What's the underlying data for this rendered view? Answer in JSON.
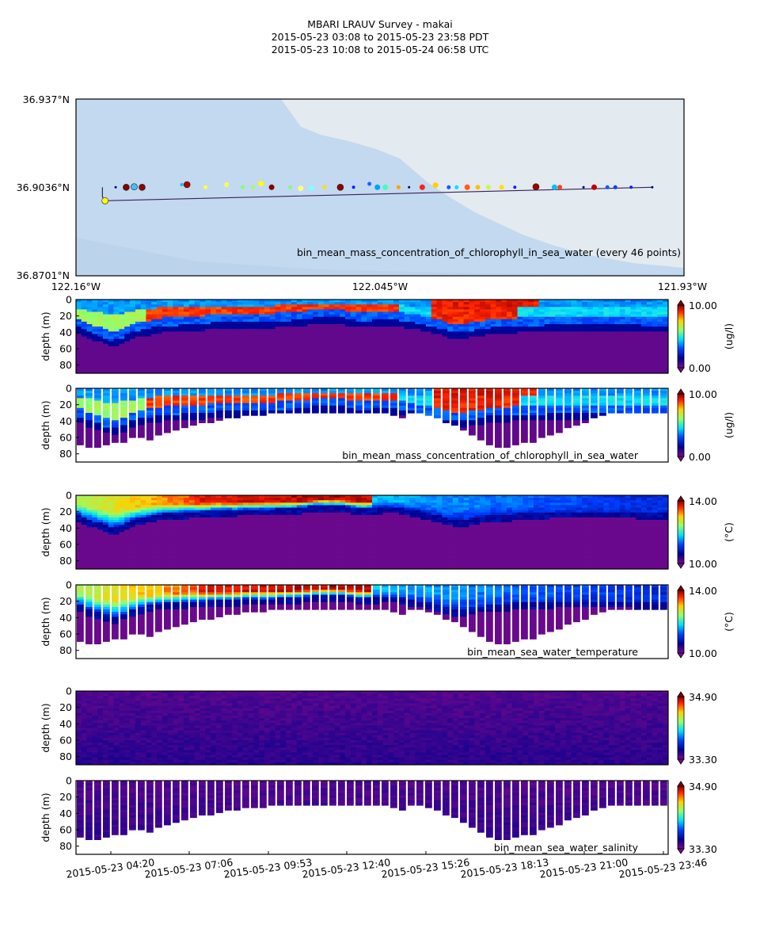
{
  "header": {
    "title": "MBARI LRAUV Survey - makai",
    "pdt_range": "2015-05-23 03:08  to  2015-05-23 23:58 PDT",
    "utc_range": "2015-05-23 10:08  to  2015-05-24 06:58 UTC"
  },
  "colors": {
    "map_land": "#e3eaf0",
    "map_water": "#c2d9ef",
    "track_line": "#3b1f5c"
  },
  "chart_data": [
    {
      "type": "scatter",
      "name": "track-map",
      "title": "",
      "annotation": "bin_mean_mass_concentration_of_chlorophyll_in_sea_water (every 46 points)",
      "xlim": [
        -122.16,
        -121.93
      ],
      "ylim": [
        36.8701,
        36.937
      ],
      "x_tick_labels": [
        "122.16°W",
        "122.045°W",
        "121.93°W"
      ],
      "y_tick_labels": [
        "36.937°N",
        "36.9036°N",
        "36.8701°N"
      ],
      "track": [
        [
          -122.15,
          36.9036
        ],
        [
          -122.15,
          36.9
        ],
        [
          -122.149,
          36.8985
        ]
      ],
      "points": [
        {
          "lon": -122.149,
          "lat": 36.8985,
          "color": "#ffff00",
          "r": 4
        },
        {
          "lon": -122.145,
          "lat": 36.9036,
          "color": "#000080",
          "r": 1.5
        },
        {
          "lon": -122.141,
          "lat": 36.9036,
          "color": "#800000",
          "r": 4
        },
        {
          "lon": -122.138,
          "lat": 36.9038,
          "color": "#40c0ff",
          "r": 4
        },
        {
          "lon": -122.135,
          "lat": 36.9036,
          "color": "#900000",
          "r": 4
        },
        {
          "lon": -122.12,
          "lat": 36.9046,
          "color": "#00c0ff",
          "r": 2
        },
        {
          "lon": -122.118,
          "lat": 36.9046,
          "color": "#b00000",
          "r": 4
        },
        {
          "lon": -122.111,
          "lat": 36.9036,
          "color": "#ffff40",
          "r": 2.5
        },
        {
          "lon": -122.103,
          "lat": 36.9046,
          "color": "#ffff40",
          "r": 3
        },
        {
          "lon": -122.097,
          "lat": 36.9036,
          "color": "#80ff80",
          "r": 2.5
        },
        {
          "lon": -122.093,
          "lat": 36.9036,
          "color": "#a0ff60",
          "r": 2.5
        },
        {
          "lon": -122.09,
          "lat": 36.905,
          "color": "#ffff00",
          "r": 3.5
        },
        {
          "lon": -122.086,
          "lat": 36.9036,
          "color": "#800000",
          "r": 3.5
        },
        {
          "lon": -122.079,
          "lat": 36.9036,
          "color": "#80ff80",
          "r": 2.5
        },
        {
          "lon": -122.075,
          "lat": 36.9032,
          "color": "#ffff80",
          "r": 3.5
        },
        {
          "lon": -122.071,
          "lat": 36.9032,
          "color": "#80ffff",
          "r": 3.5
        },
        {
          "lon": -122.066,
          "lat": 36.9036,
          "color": "#ffe000",
          "r": 2.5
        },
        {
          "lon": -122.06,
          "lat": 36.9036,
          "color": "#900000",
          "r": 4
        },
        {
          "lon": -122.055,
          "lat": 36.9036,
          "color": "#0020ff",
          "r": 2
        },
        {
          "lon": -122.049,
          "lat": 36.9049,
          "color": "#2060ff",
          "r": 2.5
        },
        {
          "lon": -122.046,
          "lat": 36.9036,
          "color": "#00a0ff",
          "r": 3.5
        },
        {
          "lon": -122.043,
          "lat": 36.9036,
          "color": "#40ffc0",
          "r": 3.5
        },
        {
          "lon": -122.038,
          "lat": 36.9036,
          "color": "#ffa000",
          "r": 2.5
        },
        {
          "lon": -122.034,
          "lat": 36.9036,
          "color": "#000080",
          "r": 1.5
        },
        {
          "lon": -122.029,
          "lat": 36.9036,
          "color": "#ff2020",
          "r": 3.5
        },
        {
          "lon": -122.024,
          "lat": 36.9044,
          "color": "#ffd000",
          "r": 3.5
        },
        {
          "lon": -122.019,
          "lat": 36.9036,
          "color": "#0060ff",
          "r": 2.5
        },
        {
          "lon": -122.016,
          "lat": 36.9036,
          "color": "#00e0ff",
          "r": 2.5
        },
        {
          "lon": -122.012,
          "lat": 36.9036,
          "color": "#ff6000",
          "r": 3.5
        },
        {
          "lon": -122.008,
          "lat": 36.9036,
          "color": "#ffc000",
          "r": 3
        },
        {
          "lon": -122.004,
          "lat": 36.9036,
          "color": "#c0ff40",
          "r": 3
        },
        {
          "lon": -121.999,
          "lat": 36.9036,
          "color": "#ffe000",
          "r": 3
        },
        {
          "lon": -121.994,
          "lat": 36.9036,
          "color": "#0020ff",
          "r": 2
        },
        {
          "lon": -121.986,
          "lat": 36.9038,
          "color": "#a00000",
          "r": 4
        },
        {
          "lon": -121.979,
          "lat": 36.9036,
          "color": "#00c0ff",
          "r": 3.5
        },
        {
          "lon": -121.977,
          "lat": 36.9036,
          "color": "#ff4020",
          "r": 3
        },
        {
          "lon": -121.968,
          "lat": 36.9036,
          "color": "#000080",
          "r": 1.5
        },
        {
          "lon": -121.964,
          "lat": 36.9036,
          "color": "#c00000",
          "r": 3.5
        },
        {
          "lon": -121.959,
          "lat": 36.9036,
          "color": "#0060ff",
          "r": 2.5
        },
        {
          "lon": -121.956,
          "lat": 36.9036,
          "color": "#0040ff",
          "r": 2.5
        },
        {
          "lon": -121.95,
          "lat": 36.9036,
          "color": "#0020ff",
          "r": 2
        },
        {
          "lon": -121.942,
          "lat": 36.9036,
          "color": "#000080",
          "r": 1.5
        }
      ]
    },
    {
      "type": "heatmap",
      "name": "chlorophyll-interpolated",
      "variable": "chl",
      "kind": "contour",
      "ylabel": "depth (m)",
      "ylim": [
        90,
        0
      ],
      "y_tick_labels": [
        "0",
        "20",
        "40",
        "60",
        "80"
      ],
      "colorbar": {
        "min_label": "0.00",
        "max_label": "10.00",
        "units": "(ug/l)"
      },
      "annotation": ""
    },
    {
      "type": "heatmap",
      "name": "chlorophyll-profiles",
      "variable": "chl",
      "kind": "profiles",
      "ylabel": "depth (m)",
      "ylim": [
        90,
        0
      ],
      "y_tick_labels": [
        "0",
        "20",
        "40",
        "60",
        "80"
      ],
      "colorbar": {
        "min_label": "0.00",
        "max_label": "10.00",
        "units": "(ug/l)"
      },
      "annotation": "bin_mean_mass_concentration_of_chlorophyll_in_sea_water"
    },
    {
      "type": "heatmap",
      "name": "temperature-interpolated",
      "variable": "temp",
      "kind": "contour",
      "ylabel": "depth (m)",
      "ylim": [
        90,
        0
      ],
      "y_tick_labels": [
        "0",
        "20",
        "40",
        "60",
        "80"
      ],
      "colorbar": {
        "min_label": "10.00",
        "max_label": "14.00",
        "units": "(°C)"
      },
      "annotation": ""
    },
    {
      "type": "heatmap",
      "name": "temperature-profiles",
      "variable": "temp",
      "kind": "profiles",
      "ylabel": "depth (m)",
      "ylim": [
        90,
        0
      ],
      "y_tick_labels": [
        "0",
        "20",
        "40",
        "60",
        "80"
      ],
      "colorbar": {
        "min_label": "10.00",
        "max_label": "14.00",
        "units": "(°C)"
      },
      "annotation": "bin_mean_sea_water_temperature"
    },
    {
      "type": "heatmap",
      "name": "salinity-interpolated",
      "variable": "sal",
      "kind": "contour",
      "ylabel": "depth (m)",
      "ylim": [
        90,
        0
      ],
      "y_tick_labels": [
        "0",
        "20",
        "40",
        "60",
        "80"
      ],
      "colorbar": {
        "min_label": "33.30",
        "max_label": "34.90",
        "units": ""
      },
      "annotation": ""
    },
    {
      "type": "heatmap",
      "name": "salinity-profiles",
      "variable": "sal",
      "kind": "profiles",
      "ylabel": "depth (m)",
      "ylim": [
        90,
        0
      ],
      "y_tick_labels": [
        "0",
        "20",
        "40",
        "60",
        "80"
      ],
      "colorbar": {
        "min_label": "33.30",
        "max_label": "34.90",
        "units": ""
      },
      "annotation": "bin_mean_sea_water_salinity"
    }
  ],
  "time_axis": {
    "tick_labels": [
      "2015-05-23 04:20",
      "2015-05-23 07:06",
      "2015-05-23 09:53",
      "2015-05-23 12:40",
      "2015-05-23 15:26",
      "2015-05-23 18:13",
      "2015-05-23 21:00",
      "2015-05-23 23:46"
    ],
    "profile_count": 68,
    "profile_bottoms_m": [
      68,
      70,
      70,
      68,
      66,
      64,
      60,
      58,
      62,
      55,
      52,
      50,
      48,
      45,
      42,
      40,
      38,
      36,
      34,
      33,
      32,
      31,
      30,
      30,
      30,
      30,
      30,
      30,
      30,
      30,
      30,
      30,
      30,
      30,
      30,
      30,
      32,
      35,
      30,
      28,
      33,
      36,
      40,
      44,
      50,
      56,
      62,
      68,
      70,
      70,
      68,
      66,
      64,
      60,
      56,
      52,
      48,
      44,
      40,
      36,
      32,
      30,
      30,
      30,
      30,
      30,
      30,
      30
    ],
    "surface_layer_depth_m": [
      22,
      28,
      32,
      35,
      40,
      38,
      32,
      28,
      26,
      24,
      22,
      22,
      21,
      20,
      20,
      19,
      18,
      18,
      18,
      17,
      17,
      17,
      17,
      16,
      16,
      15,
      14,
      12,
      12,
      12,
      12,
      14,
      16,
      16,
      15,
      14,
      14,
      16,
      18,
      20,
      22,
      25,
      28,
      30,
      30,
      28,
      26,
      24,
      24,
      24,
      22,
      22,
      22,
      22,
      20,
      20,
      20,
      20,
      20,
      20,
      20,
      20,
      20,
      20,
      22,
      22,
      22,
      22
    ]
  }
}
